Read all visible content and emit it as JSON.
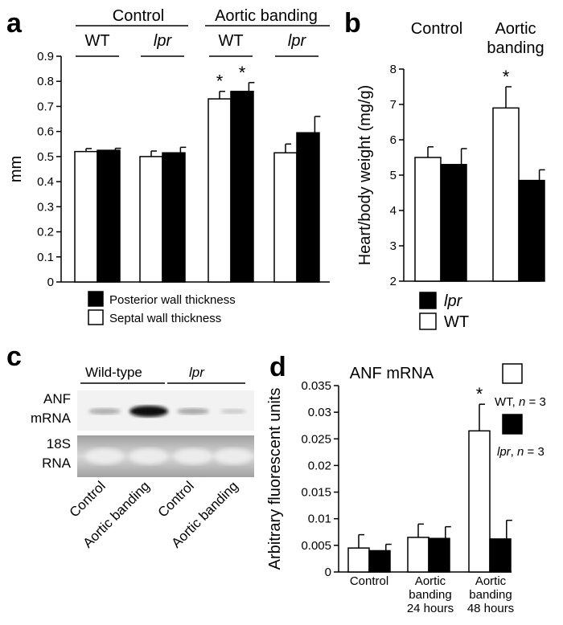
{
  "colors": {
    "wt": "#ffffff",
    "lpr": "#000000",
    "stroke": "#000000"
  },
  "chart_data": [
    {
      "panel": "a",
      "type": "bar",
      "ylabel": "mm",
      "ylim": [
        0,
        0.9
      ],
      "yticks": [
        "0",
        "0.1",
        "0.2",
        "0.3",
        "0.4",
        "0.5",
        "0.6",
        "0.7",
        "0.8",
        "0.9"
      ],
      "group_headers": [
        "Control",
        "Aortic banding"
      ],
      "categories": [
        "WT",
        "lpr",
        "WT",
        "lpr"
      ],
      "series": [
        {
          "name": "Septal wall thickness",
          "values": [
            0.52,
            0.5,
            0.73,
            0.515
          ],
          "errors": [
            0.012,
            0.022,
            0.03,
            0.035
          ]
        },
        {
          "name": "Posterior wall thickness",
          "values": [
            0.525,
            0.515,
            0.76,
            0.595
          ],
          "errors": [
            0.008,
            0.022,
            0.035,
            0.065
          ]
        }
      ],
      "significance": [
        {
          "category": 2,
          "series": 0,
          "text": "*"
        },
        {
          "category": 2,
          "series": 1,
          "text": "*"
        }
      ],
      "legend": [
        "Posterior wall thickness",
        "Septal wall thickness"
      ],
      "legend_position": "bottom"
    },
    {
      "panel": "b",
      "type": "bar",
      "ylabel": "Heart/body weight (mg/g)",
      "ylim": [
        2,
        8
      ],
      "yticks": [
        "2",
        "3",
        "4",
        "5",
        "6",
        "7",
        "8"
      ],
      "categories": [
        "Control",
        "Aortic banding"
      ],
      "series": [
        {
          "name": "WT",
          "values": [
            5.5,
            6.9
          ],
          "errors": [
            0.3,
            0.6
          ]
        },
        {
          "name": "lpr",
          "values": [
            5.3,
            4.85
          ],
          "errors": [
            0.45,
            0.3
          ]
        }
      ],
      "significance": [
        {
          "category": 1,
          "series": 0,
          "text": "*"
        }
      ],
      "legend": [
        "lpr",
        "WT"
      ],
      "legend_position": "bottom"
    },
    {
      "panel": "d",
      "type": "bar",
      "title": "ANF mRNA",
      "ylabel": "Arbitrary fluorescent units",
      "ylim": [
        0,
        0.035
      ],
      "yticks": [
        "0",
        "0.005",
        "0.01",
        "0.015",
        "0.02",
        "0.025",
        "0.03",
        "0.035"
      ],
      "categories": [
        "Control",
        "Aortic banding 24 hours",
        "Aortic banding 48 hours"
      ],
      "category_lines": [
        [
          "Control"
        ],
        [
          "Aortic",
          "banding",
          "24 hours"
        ],
        [
          "Aortic",
          "banding",
          "48 hours"
        ]
      ],
      "series": [
        {
          "name": "WT",
          "values": [
            0.0045,
            0.0065,
            0.0265
          ],
          "errors": [
            0.0025,
            0.0025,
            0.005
          ]
        },
        {
          "name": "lpr",
          "values": [
            0.004,
            0.0063,
            0.0062
          ],
          "errors": [
            0.0012,
            0.0022,
            0.0035
          ]
        }
      ],
      "significance": [
        {
          "category": 2,
          "series": 0,
          "text": "*"
        }
      ],
      "legend": [
        {
          "label": "WT, ",
          "n_italic": "n",
          "rest": " = 3"
        },
        {
          "label": "lpr",
          "label_italic": true,
          "comma": ", ",
          "n_italic": "n",
          "rest": " = 3"
        }
      ],
      "legend_position": "right"
    }
  ],
  "panel_c": {
    "letter": "c",
    "group_labels": [
      "Wild-type",
      "lpr"
    ],
    "row_labels": [
      [
        "ANF",
        "mRNA"
      ],
      [
        "18S",
        "RNA"
      ]
    ],
    "lane_labels": [
      "Control",
      "Aortic banding",
      "Control",
      "Aortic banding"
    ]
  },
  "panel_letters": [
    "a",
    "b",
    "c",
    "d"
  ]
}
